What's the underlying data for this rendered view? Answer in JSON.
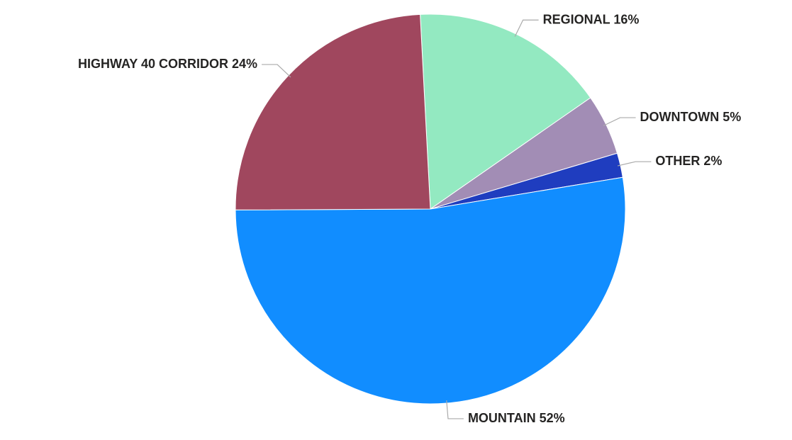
{
  "chart_data": {
    "type": "pie",
    "categories": [
      "REGIONAL",
      "DOWNTOWN",
      "OTHER",
      "MOUNTAIN",
      "HIGHWAY 40 CORRIDOR"
    ],
    "values": [
      16,
      5,
      2,
      52,
      24
    ],
    "value_labels": [
      "16%",
      "5%",
      "2%",
      "52%",
      "24%"
    ],
    "colors": [
      "#93e9c1",
      "#a28db5",
      "#1f3dbf",
      "#118dff",
      "#a0475e"
    ]
  }
}
